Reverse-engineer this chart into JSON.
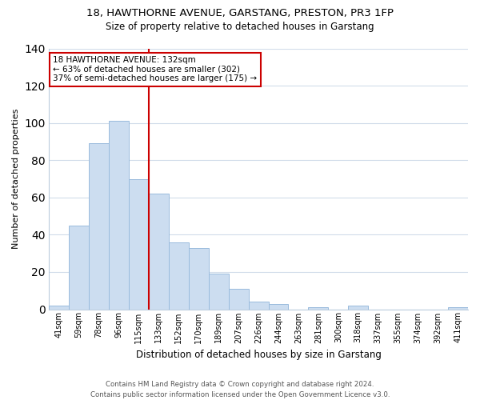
{
  "title1": "18, HAWTHORNE AVENUE, GARSTANG, PRESTON, PR3 1FP",
  "title2": "Size of property relative to detached houses in Garstang",
  "xlabel": "Distribution of detached houses by size in Garstang",
  "ylabel": "Number of detached properties",
  "bar_labels": [
    "41sqm",
    "59sqm",
    "78sqm",
    "96sqm",
    "115sqm",
    "133sqm",
    "152sqm",
    "170sqm",
    "189sqm",
    "207sqm",
    "226sqm",
    "244sqm",
    "263sqm",
    "281sqm",
    "300sqm",
    "318sqm",
    "337sqm",
    "355sqm",
    "374sqm",
    "392sqm",
    "411sqm"
  ],
  "bar_values": [
    2,
    45,
    89,
    101,
    70,
    62,
    36,
    33,
    19,
    11,
    4,
    3,
    0,
    1,
    0,
    2,
    0,
    0,
    0,
    0,
    1
  ],
  "bar_color": "#ccddf0",
  "bar_edge_color": "#99bbdd",
  "vline_index": 5,
  "vline_color": "#cc0000",
  "ylim": [
    0,
    140
  ],
  "yticks": [
    0,
    20,
    40,
    60,
    80,
    100,
    120,
    140
  ],
  "annotation_title": "18 HAWTHORNE AVENUE: 132sqm",
  "annotation_line1": "← 63% of detached houses are smaller (302)",
  "annotation_line2": "37% of semi-detached houses are larger (175) →",
  "annotation_box_facecolor": "#ffffff",
  "annotation_box_edgecolor": "#cc0000",
  "footer1": "Contains HM Land Registry data © Crown copyright and database right 2024.",
  "footer2": "Contains public sector information licensed under the Open Government Licence v3.0.",
  "background_color": "#ffffff",
  "grid_color": "#d0dcea"
}
